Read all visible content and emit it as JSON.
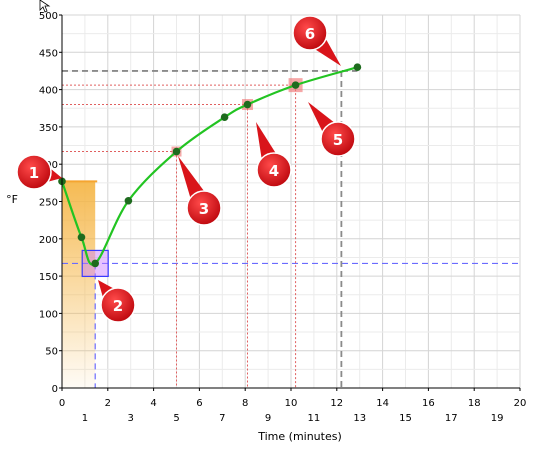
{
  "chart_data": {
    "type": "line",
    "title": "",
    "xlabel": "Time (minutes)",
    "ylabel": "°F",
    "xlim": [
      0,
      20
    ],
    "ylim": [
      0,
      500
    ],
    "grid": true,
    "x_ticks_top": [
      "0",
      "2",
      "4",
      "6",
      "8",
      "10",
      "12",
      "14",
      "16",
      "18",
      "20"
    ],
    "x_ticks_bottom": [
      "1",
      "3",
      "5",
      "7",
      "9",
      "11",
      "13",
      "15",
      "17",
      "19"
    ],
    "y_ticks": [
      "0",
      "50",
      "100",
      "150",
      "200",
      "250",
      "300",
      "350",
      "400",
      "450",
      "500"
    ],
    "series": [
      {
        "color": "#22c422",
        "marker_color": "#1e6b1e",
        "points": [
          {
            "x": 0,
            "y": 277
          },
          {
            "x": 0.85,
            "y": 202
          },
          {
            "x": 1.45,
            "y": 167
          },
          {
            "x": 2.9,
            "y": 251
          },
          {
            "x": 5.0,
            "y": 317
          },
          {
            "x": 7.1,
            "y": 363
          },
          {
            "x": 8.1,
            "y": 380
          },
          {
            "x": 10.2,
            "y": 406
          },
          {
            "x": 12.9,
            "y": 430
          }
        ]
      }
    ],
    "reference_lines": {
      "blue_horizontal_y": 167,
      "blue_vertical_x": 1.45,
      "red_horizontal_y": [
        317,
        380,
        406
      ],
      "red_vertical_x": [
        5.0,
        8.1,
        10.2
      ],
      "gray_horizontal_y": 425,
      "gray_vertical_x": 12.2
    },
    "shaded_band": {
      "x_end": 1.45,
      "y_top": 277,
      "color": "#f5b74a"
    },
    "callouts": [
      {
        "number": "1",
        "color": "#d9141a"
      },
      {
        "number": "2",
        "color": "#d9141a"
      },
      {
        "number": "3",
        "color": "#d9141a"
      },
      {
        "number": "4",
        "color": "#d9141a"
      },
      {
        "number": "5",
        "color": "#d9141a"
      },
      {
        "number": "6",
        "color": "#d9141a"
      }
    ]
  }
}
